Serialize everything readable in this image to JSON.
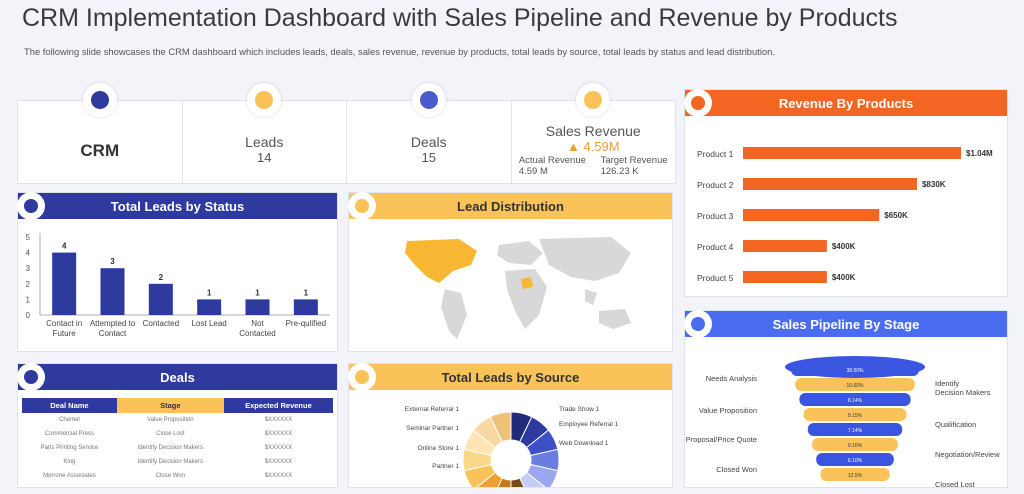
{
  "header": {
    "title": "CRM Implementation Dashboard with Sales Pipeline and Revenue by Products",
    "subtitle": "The following slide showcases the CRM dashboard which includes leads, deals, sales revenue, revenue by products, total leads by source, total leads by status and lead distribution."
  },
  "kpis": {
    "crm": "CRM",
    "leads_label": "Leads",
    "leads_value": "14",
    "deals_label": "Deals",
    "deals_value": "15",
    "sales_label": "Sales Revenue",
    "sales_value": "▲ 4.59M",
    "actual_label": "Actual Revenue",
    "actual_value": "4.59 M",
    "target_label": "Target Revenue",
    "target_value": "126.23 K"
  },
  "panels": {
    "leads_status": "Total Leads by Status",
    "lead_distribution": "Lead Distribution",
    "revenue_products": "Revenue By Products",
    "sales_pipeline": "Sales Pipeline By Stage",
    "deals": "Deals",
    "leads_source": "Total Leads by Source"
  },
  "colors": {
    "navy": "#2e3a9e",
    "orange": "#f26522",
    "yellow": "#f9c35a",
    "blue": "#4a6cf0"
  },
  "chart_data": [
    {
      "type": "bar",
      "title": "Total Leads by Status",
      "categories": [
        "Contact in Future",
        "Attempted to Contact",
        "Contacted",
        "Lost Lead",
        "Not Contacted",
        "Pre-qulified"
      ],
      "values": [
        4,
        3,
        2,
        1,
        1,
        1
      ],
      "ylim": [
        0,
        5
      ],
      "yticks": [
        "0",
        "1",
        "2",
        "3",
        "4",
        "5"
      ]
    },
    {
      "type": "bar",
      "title": "Revenue By Products",
      "orientation": "horizontal",
      "categories": [
        "Product 1",
        "Product 2",
        "Product 3",
        "Product 4",
        "Product 5"
      ],
      "values": [
        1040,
        830,
        650,
        400,
        400
      ],
      "labels": [
        "$1.04M",
        "$830K",
        "$650K",
        "$400K",
        "$400K"
      ]
    },
    {
      "type": "pie",
      "title": "Total Leads by Source",
      "left_labels": [
        "External Referral 1",
        "Seminar Partner 1",
        "Online Store 1",
        "Partner 1"
      ],
      "right_labels": [
        "Trade Show 1",
        "Employee Referral 1",
        "Web Download 1"
      ],
      "values": [
        1,
        1,
        1,
        1,
        1,
        1,
        1,
        1,
        1,
        1,
        1,
        1,
        1,
        1
      ],
      "colors": [
        "#1e2a7a",
        "#2e3a9e",
        "#3d4fc4",
        "#6a7de0",
        "#9aa6ee",
        "#c5ccf6",
        "#7a4a10",
        "#c47a18",
        "#f0a030",
        "#f9c35a",
        "#fbd789",
        "#fde6b4",
        "#f6d8a0",
        "#efc27a"
      ]
    }
  ],
  "pipeline": {
    "left_labels": [
      "Needs Analysis",
      "Value Proposition",
      "Proposal/Price Quote",
      "Closed Won"
    ],
    "right_labels": [
      "Identify Decision Makers",
      "Qualification",
      "Negotiation/Review",
      "Closed Lost"
    ],
    "stage_values": [
      "38.00%",
      "10.60%",
      "8.14%",
      "9.15%",
      "7.14%",
      "9.16%",
      "6.10%",
      "12.5%"
    ]
  },
  "deals_table": {
    "headers": [
      "Deal Name",
      "Stage",
      "Expected Revenue"
    ],
    "rows": [
      [
        "Chemel",
        "Value Proposition",
        "$XXXXXX"
      ],
      [
        "Commercial Press",
        "Close Lost",
        "$XXXXXX"
      ],
      [
        "Parts Printing Service",
        "Identify Decision Makers",
        "$XXXXXX"
      ],
      [
        "King",
        "Identify Decision Makers",
        "$XXXXXX"
      ],
      [
        "Morrone Associates",
        "Close Won",
        "$XXXXXX"
      ]
    ]
  }
}
